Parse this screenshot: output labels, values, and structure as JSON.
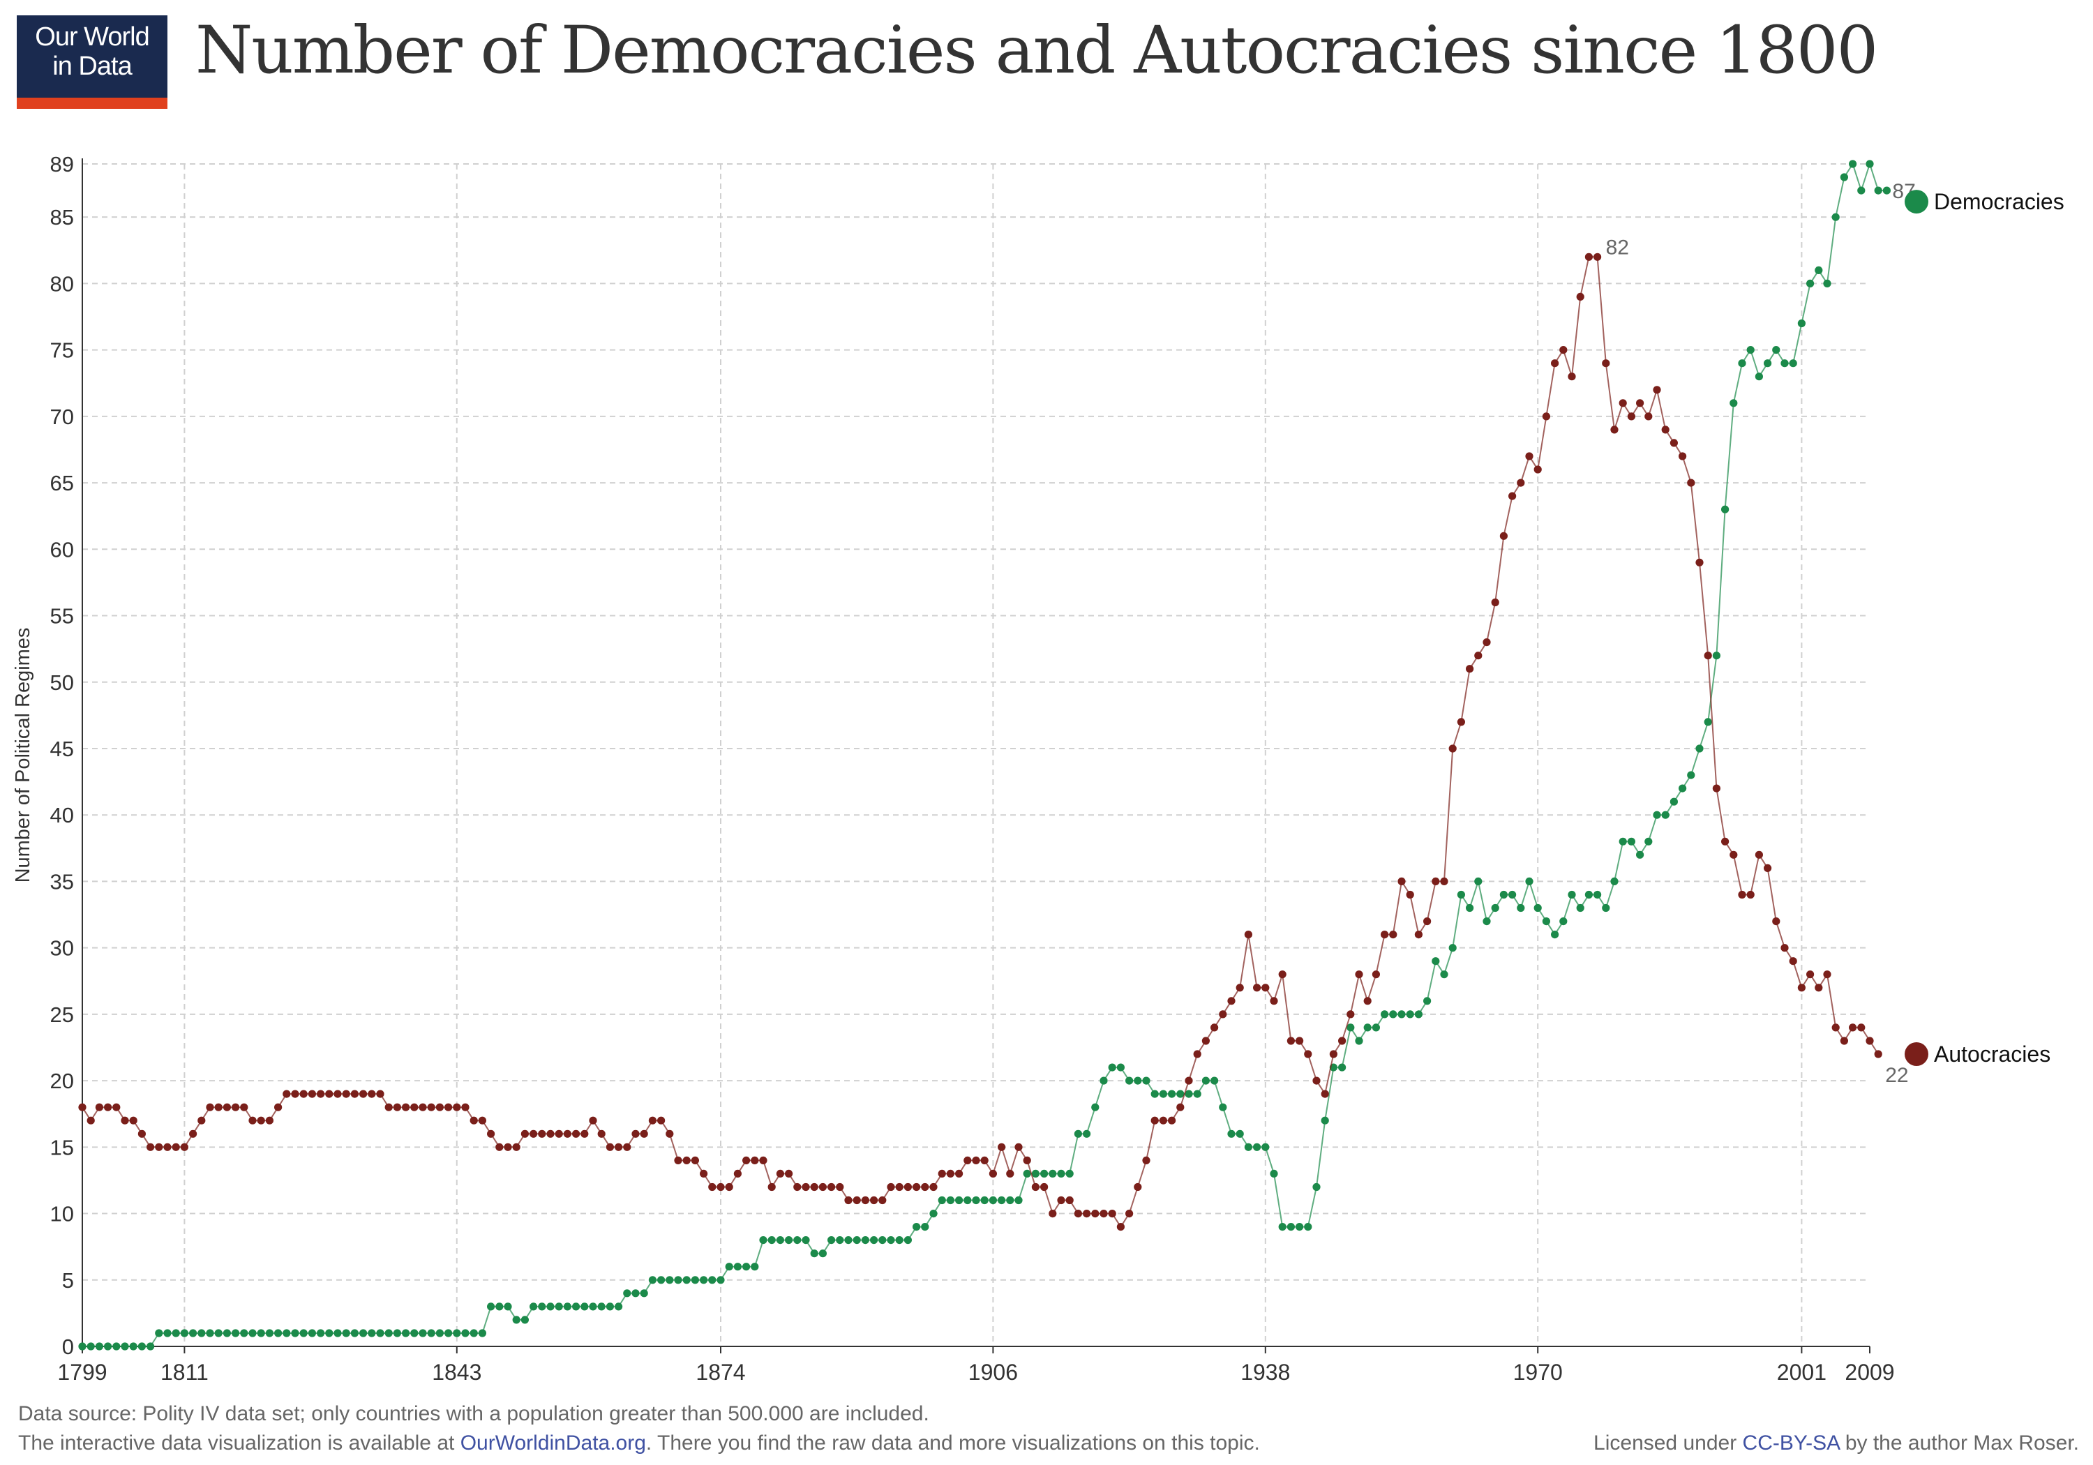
{
  "brand": {
    "line1": "Our World",
    "line2": "in Data"
  },
  "title": "Number of Democracies and Autocracies since 1800",
  "footer": {
    "source": "Data source: Polity IV data set; only countries with a population greater than 500.000 are included.",
    "interactive_prefix": "The interactive data visualization is available at ",
    "interactive_link": "OurWorldinData.org",
    "interactive_suffix": ". There you find the raw data and more visualizations on this topic.",
    "license_prefix": "Licensed under ",
    "license_link": "CC-BY-SA",
    "license_suffix": " by the author Max Roser."
  },
  "colors": {
    "democracies": "#1b8a4a",
    "autocracies": "#7a1f1a",
    "grid": "#d0d0d0",
    "axis": "#333333",
    "annotation": "#666666"
  },
  "chart_data": {
    "type": "line",
    "title": "Number of Democracies and Autocracies since 1800",
    "xlabel": "",
    "ylabel": "Number of Political Regimes",
    "xlim": [
      1799,
      2009
    ],
    "ylim": [
      0,
      89
    ],
    "x_ticks": [
      1799,
      1811,
      1843,
      1874,
      1906,
      1938,
      1970,
      2001,
      2009
    ],
    "y_ticks": [
      0,
      5,
      10,
      15,
      20,
      25,
      30,
      35,
      40,
      45,
      50,
      55,
      60,
      65,
      70,
      75,
      80,
      85,
      89
    ],
    "grid": true,
    "legend": "right",
    "start_year": 1799,
    "series": [
      {
        "name": "Democracies",
        "color": "#1b8a4a",
        "end_label": "87",
        "values": [
          0,
          0,
          0,
          0,
          0,
          0,
          0,
          0,
          0,
          1,
          1,
          1,
          1,
          1,
          1,
          1,
          1,
          1,
          1,
          1,
          1,
          1,
          1,
          1,
          1,
          1,
          1,
          1,
          1,
          1,
          1,
          1,
          1,
          1,
          1,
          1,
          1,
          1,
          1,
          1,
          1,
          1,
          1,
          1,
          1,
          1,
          1,
          1,
          3,
          3,
          3,
          2,
          2,
          3,
          3,
          3,
          3,
          3,
          3,
          3,
          3,
          3,
          3,
          3,
          4,
          4,
          4,
          5,
          5,
          5,
          5,
          5,
          5,
          5,
          5,
          5,
          6,
          6,
          6,
          6,
          8,
          8,
          8,
          8,
          8,
          8,
          7,
          7,
          8,
          8,
          8,
          8,
          8,
          8,
          8,
          8,
          8,
          8,
          9,
          9,
          10,
          11,
          11,
          11,
          11,
          11,
          11,
          11,
          11,
          11,
          11,
          13,
          13,
          13,
          13,
          13,
          13,
          16,
          16,
          18,
          20,
          21,
          21,
          20,
          20,
          20,
          19,
          19,
          19,
          19,
          19,
          19,
          20,
          20,
          18,
          16,
          16,
          15,
          15,
          15,
          13,
          9,
          9,
          9,
          9,
          12,
          17,
          21,
          21,
          24,
          23,
          24,
          24,
          25,
          25,
          25,
          25,
          25,
          26,
          29,
          28,
          30,
          34,
          33,
          35,
          32,
          33,
          34,
          34,
          33,
          35,
          33,
          32,
          31,
          32,
          34,
          33,
          34,
          34,
          33,
          35,
          38,
          38,
          37,
          38,
          40,
          40,
          41,
          42,
          43,
          45,
          47,
          52,
          63,
          71,
          74,
          75,
          73,
          74,
          75,
          74,
          74,
          77,
          80,
          81,
          80,
          85,
          88,
          89,
          87,
          89,
          87,
          87
        ]
      },
      {
        "name": "Autocracies",
        "color": "#7a1f1a",
        "end_label": "22",
        "peak_label": "82",
        "values": [
          18,
          17,
          18,
          18,
          18,
          17,
          17,
          16,
          15,
          15,
          15,
          15,
          15,
          16,
          17,
          18,
          18,
          18,
          18,
          18,
          17,
          17,
          17,
          18,
          19,
          19,
          19,
          19,
          19,
          19,
          19,
          19,
          19,
          19,
          19,
          19,
          18,
          18,
          18,
          18,
          18,
          18,
          18,
          18,
          18,
          18,
          17,
          17,
          16,
          15,
          15,
          15,
          16,
          16,
          16,
          16,
          16,
          16,
          16,
          16,
          17,
          16,
          15,
          15,
          15,
          16,
          16,
          17,
          17,
          16,
          14,
          14,
          14,
          13,
          12,
          12,
          12,
          13,
          14,
          14,
          14,
          12,
          13,
          13,
          12,
          12,
          12,
          12,
          12,
          12,
          11,
          11,
          11,
          11,
          11,
          12,
          12,
          12,
          12,
          12,
          12,
          13,
          13,
          13,
          14,
          14,
          14,
          13,
          15,
          13,
          15,
          14,
          12,
          12,
          10,
          11,
          11,
          10,
          10,
          10,
          10,
          10,
          9,
          10,
          12,
          14,
          17,
          17,
          17,
          18,
          20,
          22,
          23,
          24,
          25,
          26,
          27,
          31,
          27,
          27,
          26,
          28,
          23,
          23,
          22,
          20,
          19,
          22,
          23,
          25,
          28,
          26,
          28,
          31,
          31,
          35,
          34,
          31,
          32,
          35,
          35,
          45,
          47,
          51,
          52,
          53,
          56,
          61,
          64,
          65,
          67,
          66,
          70,
          74,
          75,
          73,
          79,
          82,
          82,
          74,
          69,
          71,
          70,
          71,
          70,
          72,
          69,
          68,
          67,
          65,
          59,
          52,
          42,
          38,
          37,
          34,
          34,
          37,
          36,
          32,
          30,
          29,
          27,
          28,
          27,
          28,
          24,
          23,
          24,
          24,
          23,
          22
        ]
      }
    ]
  }
}
